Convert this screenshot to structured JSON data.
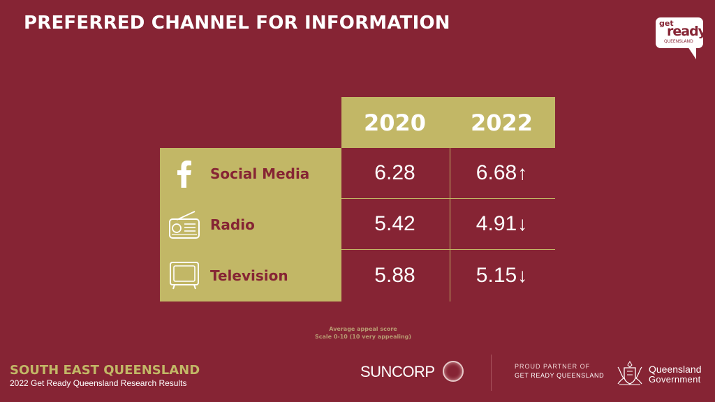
{
  "title": "PREFERRED CHANNEL FOR INFORMATION",
  "logo": {
    "get": "get",
    "ready": "ready",
    "queensland": "QUEENSLAND"
  },
  "table": {
    "years": [
      "2020",
      "2022"
    ],
    "rows": [
      {
        "label": "Social Media",
        "icon": "facebook-icon",
        "v2020": "6.28",
        "v2022": "6.68",
        "trend": "↑"
      },
      {
        "label": "Radio",
        "icon": "radio-icon",
        "v2020": "5.42",
        "v2022": "4.91",
        "trend": "↓"
      },
      {
        "label": "Television",
        "icon": "television-icon",
        "v2020": "5.88",
        "v2022": "5.15",
        "trend": "↓"
      }
    ]
  },
  "footnote": {
    "line1": "Average appeal score",
    "line2": "Scale 0-10 (10 very appealing)"
  },
  "footer": {
    "region": "SOUTH EAST QUEENSLAND",
    "subtitle": "2022 Get Ready Queensland Research Results",
    "suncorp": "SUNCORP",
    "partner_line1": "PROUD PARTNER OF",
    "partner_line2": "GET READY QUEENSLAND",
    "qld_line1": "Queensland",
    "qld_line2": "Government"
  },
  "colors": {
    "background": "#862434",
    "accent": "#c2b766"
  }
}
